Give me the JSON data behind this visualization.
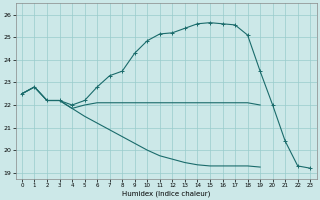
{
  "xlabel": "Humidex (Indice chaleur)",
  "xlim": [
    -0.5,
    23.5
  ],
  "ylim": [
    18.7,
    26.5
  ],
  "yticks": [
    19,
    20,
    21,
    22,
    23,
    24,
    25,
    26
  ],
  "xticks": [
    0,
    1,
    2,
    3,
    4,
    5,
    6,
    7,
    8,
    9,
    10,
    11,
    12,
    13,
    14,
    15,
    16,
    17,
    18,
    19,
    20,
    21,
    22,
    23
  ],
  "bg": "#cce8e8",
  "grid_color": "#99cccc",
  "lc": "#1a6b6b",
  "c1x": [
    0,
    1,
    2,
    3,
    4,
    5,
    6,
    7,
    8,
    9,
    10,
    11,
    12,
    13,
    14,
    15,
    16,
    17,
    18,
    19,
    20,
    21,
    22,
    23
  ],
  "c1y": [
    22.5,
    22.8,
    22.2,
    22.2,
    22.0,
    22.2,
    22.8,
    23.3,
    23.5,
    24.3,
    24.85,
    25.15,
    25.2,
    25.4,
    25.6,
    25.65,
    25.6,
    25.55,
    25.1,
    23.5,
    22.0,
    20.4,
    19.3,
    19.2
  ],
  "c2x": [
    0,
    1,
    2,
    3,
    4,
    5,
    6,
    7,
    8,
    9,
    10,
    11,
    12,
    13,
    14,
    15,
    16,
    17,
    18,
    19
  ],
  "c2y": [
    22.5,
    22.8,
    22.2,
    22.2,
    21.85,
    22.0,
    22.1,
    22.1,
    22.1,
    22.1,
    22.1,
    22.1,
    22.1,
    22.1,
    22.1,
    22.1,
    22.1,
    22.1,
    22.1,
    22.0
  ],
  "c3x": [
    0,
    1,
    2,
    3,
    4,
    5,
    6,
    7,
    8,
    9,
    10,
    11,
    12,
    13,
    14,
    15,
    16,
    17,
    18,
    19,
    20,
    21,
    22,
    23
  ],
  "c3y": [
    22.5,
    22.8,
    22.2,
    22.2,
    21.85,
    21.5,
    21.2,
    20.9,
    20.6,
    20.3,
    20.0,
    19.75,
    19.6,
    19.45,
    19.35,
    19.3,
    19.3,
    19.3,
    19.3,
    19.25,
    null,
    null,
    null,
    null
  ]
}
